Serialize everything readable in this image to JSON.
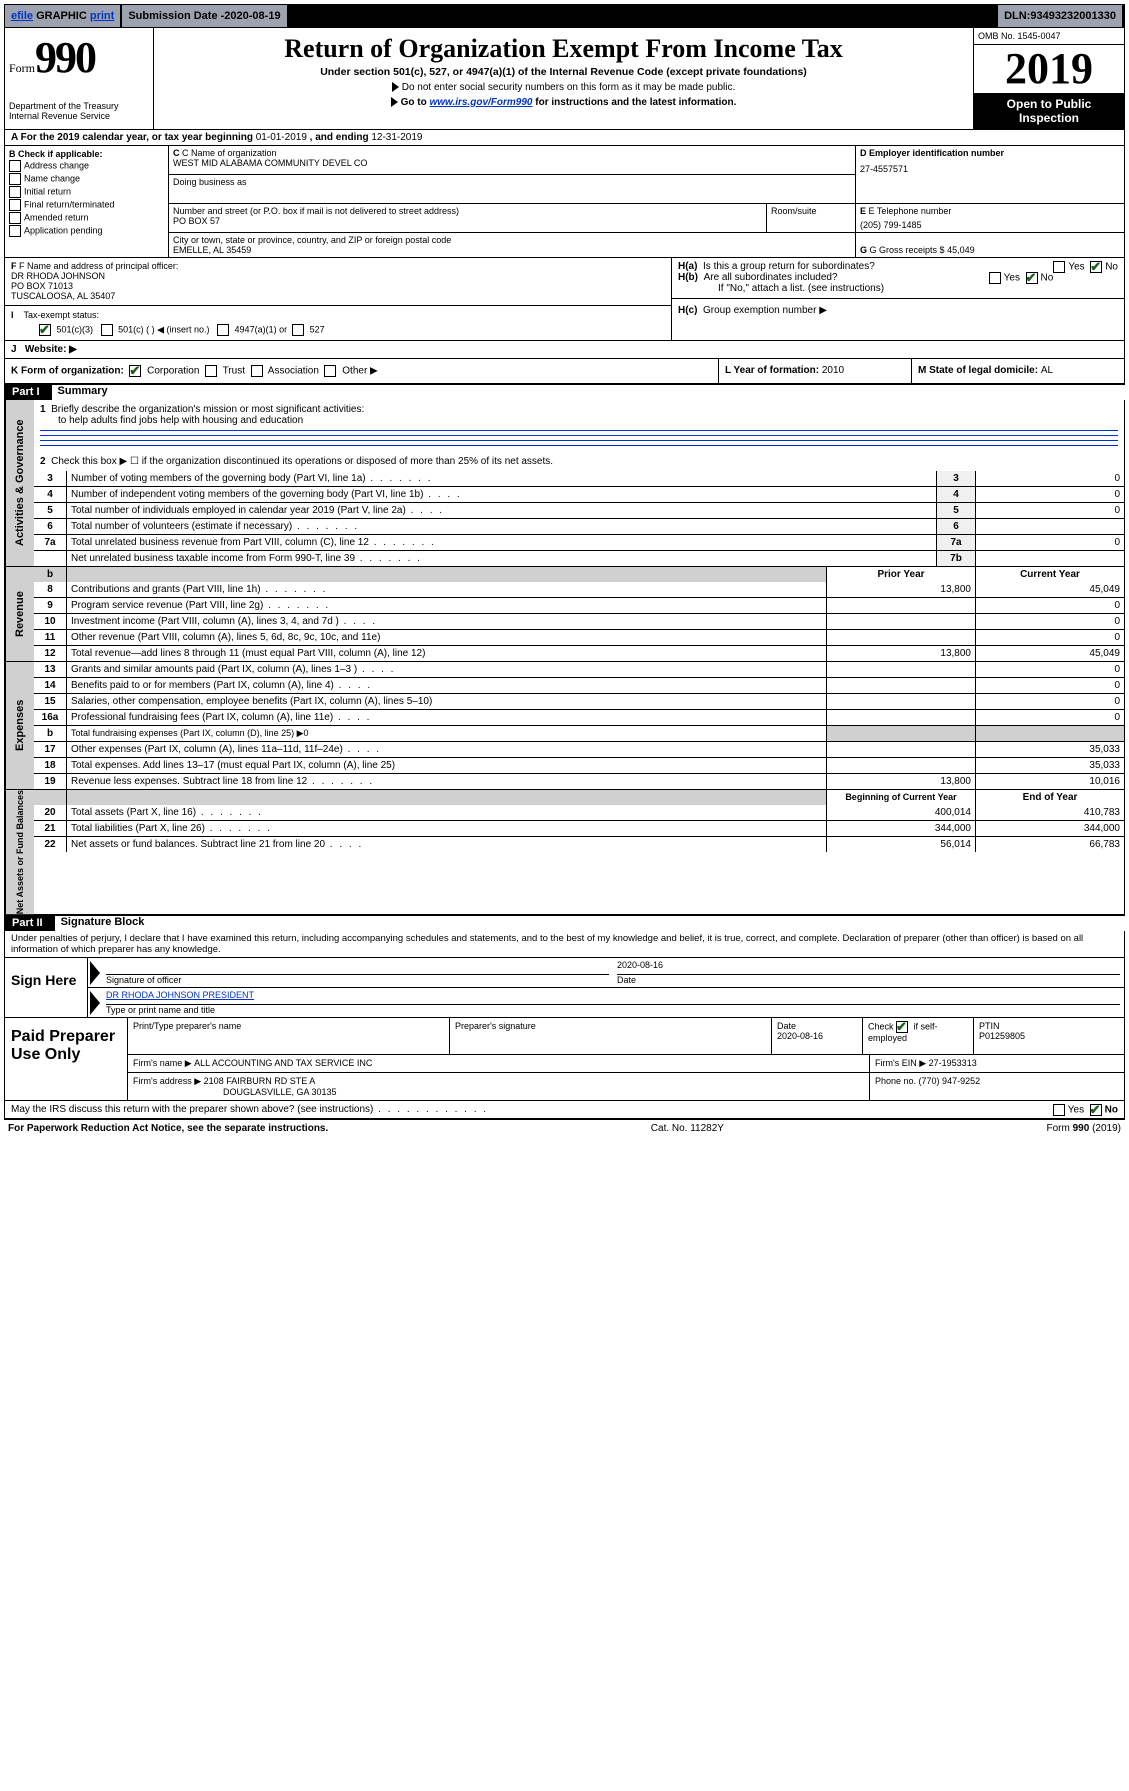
{
  "topbar": {
    "efile": "efile",
    "graphic": "GRAPHIC",
    "print": "print",
    "submission_label": "Submission Date - ",
    "submission_date": "2020-08-19",
    "dln_label": "DLN: ",
    "dln": "93493232001330"
  },
  "header": {
    "form_word": "Form",
    "form_num": "990",
    "dept": "Department of the Treasury",
    "irs": "Internal Revenue Service",
    "title": "Return of Organization Exempt From Income Tax",
    "sub1": "Under section 501(c), 527, or 4947(a)(1) of the Internal Revenue Code (except private foundations)",
    "sub2": "Do not enter social security numbers on this form as it may be made public.",
    "sub3a": "Go to ",
    "sub3_link": "www.irs.gov/Form990",
    "sub3b": " for instructions and the latest information.",
    "omb": "OMB No. 1545-0047",
    "year": "2019",
    "open": "Open to Public Inspection"
  },
  "lineA": {
    "prefix": "A For the 2019 calendar year, or tax year beginning ",
    "begin": "01-01-2019",
    "mid": " , and ending ",
    "end": "12-31-2019"
  },
  "boxB": {
    "label": "B Check if applicable:",
    "opts": [
      "Address change",
      "Name change",
      "Initial return",
      "Final return/terminated",
      "Amended return",
      "Application pending"
    ]
  },
  "boxC": {
    "name_label": "C Name of organization",
    "org": "WEST MID ALABAMA COMMUNITY DEVEL CO",
    "dba": "Doing business as",
    "street_label": "Number and street (or P.O. box if mail is not delivered to street address)",
    "street": "PO BOX 57",
    "room": "Room/suite",
    "city_label": "City or town, state or province, country, and ZIP or foreign postal code",
    "city": "EMELLE, AL  35459"
  },
  "boxD": {
    "label": "D Employer identification number",
    "ein": "27-4557571"
  },
  "boxE": {
    "label": "E Telephone number",
    "phone": "(205) 799-1485"
  },
  "boxG": {
    "label": "G Gross receipts $ ",
    "amount": "45,049"
  },
  "boxF": {
    "label": "F Name and address of principal officer:",
    "name": "DR RHODA JOHNSON",
    "addr1": "PO BOX 71013",
    "addr2": "TUSCALOOSA, AL  35407"
  },
  "boxH": {
    "ha": "Is this a group return for subordinates?",
    "hb": "Are all subordinates included?",
    "hb_note": "If \"No,\" attach a list. (see instructions)",
    "hc": "Group exemption number ▶",
    "yes": "Yes",
    "no": "No"
  },
  "lineI": {
    "label": "Tax-exempt status:",
    "o1": "501(c)(3)",
    "o2": "501(c) (  ) ◀ (insert no.)",
    "o3": "4947(a)(1) or",
    "o4": "527"
  },
  "lineJ": {
    "label": "Website: ▶"
  },
  "lineK": {
    "label": "K Form of organization:",
    "opts": [
      "Corporation",
      "Trust",
      "Association",
      "Other ▶"
    ]
  },
  "lineL": {
    "label": "L Year of formation: ",
    "val": "2010"
  },
  "lineM": {
    "label": "M State of legal domicile: ",
    "val": "AL"
  },
  "parts": {
    "p1": "Part I",
    "p1_title": "Summary",
    "p2": "Part II",
    "p2_title": "Signature Block"
  },
  "summary": {
    "q1": "Briefly describe the organization's mission or most significant activities:",
    "mission": "to help adults find jobs help with housing and education",
    "q2": "Check this box ▶ ☐  if the organization discontinued its operations or disposed of more than 25% of its net assets.",
    "rows_gov": [
      {
        "n": "3",
        "t": "Number of voting members of the governing body (Part VI, line 1a)",
        "box": "3",
        "v": "0",
        "dots": "s"
      },
      {
        "n": "4",
        "t": "Number of independent voting members of the governing body (Part VI, line 1b)",
        "box": "4",
        "v": "0",
        "dots": "xs"
      },
      {
        "n": "5",
        "t": "Total number of individuals employed in calendar year 2019 (Part V, line 2a)",
        "box": "5",
        "v": "0",
        "dots": "xs"
      },
      {
        "n": "6",
        "t": "Total number of volunteers (estimate if necessary)",
        "box": "6",
        "v": "",
        "dots": "s"
      },
      {
        "n": "7a",
        "t": "Total unrelated business revenue from Part VIII, column (C), line 12",
        "box": "7a",
        "v": "0",
        "dots": "s"
      },
      {
        "n": "",
        "t": "Net unrelated business taxable income from Form 990-T, line 39",
        "box": "7b",
        "v": "",
        "dots": "s"
      }
    ],
    "col_prior": "Prior Year",
    "col_current": "Current Year",
    "rows_rev": [
      {
        "n": "8",
        "t": "Contributions and grants (Part VIII, line 1h)",
        "p": "13,800",
        "c": "45,049",
        "dots": "s"
      },
      {
        "n": "9",
        "t": "Program service revenue (Part VIII, line 2g)",
        "p": "",
        "c": "0",
        "dots": "s"
      },
      {
        "n": "10",
        "t": "Investment income (Part VIII, column (A), lines 3, 4, and 7d )",
        "p": "",
        "c": "0",
        "dots": "xs"
      },
      {
        "n": "11",
        "t": "Other revenue (Part VIII, column (A), lines 5, 6d, 8c, 9c, 10c, and 11e)",
        "p": "",
        "c": "0",
        "dots": ""
      },
      {
        "n": "12",
        "t": "Total revenue—add lines 8 through 11 (must equal Part VIII, column (A), line 12)",
        "p": "13,800",
        "c": "45,049",
        "dots": ""
      }
    ],
    "rows_exp": [
      {
        "n": "13",
        "t": "Grants and similar amounts paid (Part IX, column (A), lines 1–3 )",
        "p": "",
        "c": "0",
        "dots": "xs"
      },
      {
        "n": "14",
        "t": "Benefits paid to or for members (Part IX, column (A), line 4)",
        "p": "",
        "c": "0",
        "dots": "xs"
      },
      {
        "n": "15",
        "t": "Salaries, other compensation, employee benefits (Part IX, column (A), lines 5–10)",
        "p": "",
        "c": "0",
        "dots": ""
      },
      {
        "n": "16a",
        "t": "Professional fundraising fees (Part IX, column (A), line 11e)",
        "p": "",
        "c": "0",
        "dots": "xs"
      },
      {
        "n": "b",
        "t": "Total fundraising expenses (Part IX, column (D), line 25) ▶0",
        "p": "shade",
        "c": "shade",
        "dots": "",
        "small": true
      },
      {
        "n": "17",
        "t": "Other expenses (Part IX, column (A), lines 11a–11d, 11f–24e)",
        "p": "",
        "c": "35,033",
        "dots": "xs"
      },
      {
        "n": "18",
        "t": "Total expenses. Add lines 13–17 (must equal Part IX, column (A), line 25)",
        "p": "",
        "c": "35,033",
        "dots": ""
      },
      {
        "n": "19",
        "t": "Revenue less expenses. Subtract line 18 from line 12",
        "p": "13,800",
        "c": "10,016",
        "dots": "s"
      }
    ],
    "col_begin": "Beginning of Current Year",
    "col_end": "End of Year",
    "rows_net": [
      {
        "n": "20",
        "t": "Total assets (Part X, line 16)",
        "p": "400,014",
        "c": "410,783",
        "dots": "s"
      },
      {
        "n": "21",
        "t": "Total liabilities (Part X, line 26)",
        "p": "344,000",
        "c": "344,000",
        "dots": "s"
      },
      {
        "n": "22",
        "t": "Net assets or fund balances. Subtract line 21 from line 20",
        "p": "56,014",
        "c": "66,783",
        "dots": "xs"
      }
    ],
    "side_gov": "Activities & Governance",
    "side_rev": "Revenue",
    "side_exp": "Expenses",
    "side_net": "Net Assets or Fund Balances"
  },
  "perjury": "Under penalties of perjury, I declare that I have examined this return, including accompanying schedules and statements, and to the best of my knowledge and belief, it is true, correct, and complete. Declaration of preparer (other than officer) is based on all information of which preparer has any knowledge.",
  "sign": {
    "left": "Sign Here",
    "sig_officer": "Signature of officer",
    "date": "2020-08-16",
    "date_label": "Date",
    "name": "DR RHODA JOHNSON  PRESIDENT",
    "name_label": "Type or print name and title"
  },
  "paid": {
    "left": "Paid Preparer Use Only",
    "h1": "Print/Type preparer's name",
    "h2": "Preparer's signature",
    "h3": "Date",
    "date": "2020-08-16",
    "h4": "Check ☑ if self-employed",
    "h5": "PTIN",
    "ptin": "P01259805",
    "firm_label": "Firm's name    ▶",
    "firm": "ALL ACCOUNTING AND TAX SERVICE INC",
    "ein_label": "Firm's EIN ▶",
    "ein": "27-1953313",
    "addr_label": "Firm's address ▶",
    "addr1": "2108 FAIRBURN RD STE A",
    "addr2": "DOUGLASVILLE, GA  30135",
    "phone_label": "Phone no. ",
    "phone": "(770) 947-9252"
  },
  "discuss": {
    "text": "May the IRS discuss this return with the preparer shown above? (see instructions)",
    "yes": "Yes",
    "no": "No"
  },
  "footer": {
    "left": "For Paperwork Reduction Act Notice, see the separate instructions.",
    "mid": "Cat. No. 11282Y",
    "right": "Form 990 (2019)"
  }
}
